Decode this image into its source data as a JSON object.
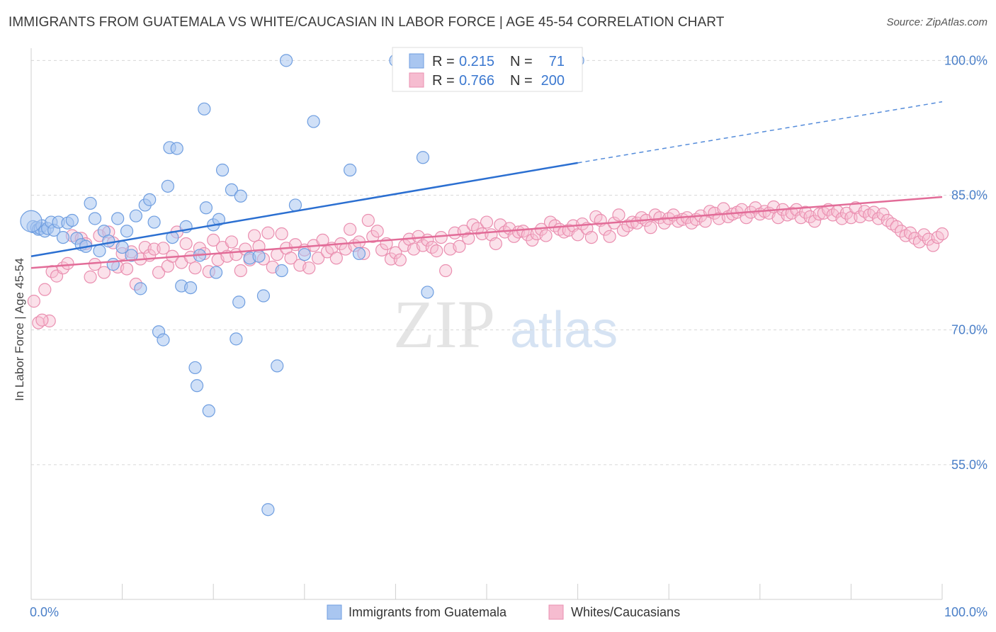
{
  "title": "IMMIGRANTS FROM GUATEMALA VS WHITE/CAUCASIAN IN LABOR FORCE | AGE 45-54 CORRELATION CHART",
  "source": "Source: ZipAtlas.com",
  "watermark": {
    "zip": "ZIP",
    "atlas": "atlas"
  },
  "colors": {
    "blue_fill": "#a9c6f0",
    "blue_stroke": "#6f9ee0",
    "blue_line": "#2b6fd1",
    "pink_fill": "#f6bcd0",
    "pink_stroke": "#ea8fb0",
    "pink_line": "#e26c98",
    "grid": "#d8d8d8",
    "axis_label": "#4a7fc8"
  },
  "legend": {
    "rows": [
      {
        "r_label": "R =",
        "r_value": "0.215",
        "n_label": "N =",
        "n_value": "71"
      },
      {
        "r_label": "R =",
        "r_value": "0.766",
        "n_label": "N =",
        "n_value": "200"
      }
    ]
  },
  "bottom_legend": {
    "series1": "Immigrants from Guatemala",
    "series2": "Whites/Caucasians"
  },
  "chart_data": {
    "type": "scatter",
    "ylabel": "In Labor Force | Age 45-54",
    "x_tick_labels": [
      "0.0%",
      "100.0%"
    ],
    "y_tick_labels": [
      "100.0%",
      "85.0%",
      "70.0%",
      "55.0%"
    ],
    "xlim": [
      0,
      100
    ],
    "ylim": [
      40,
      102
    ],
    "yticks": [
      100,
      85,
      70,
      55
    ],
    "series": [
      {
        "name": "Immigrants from Guatemala",
        "color": "#a9c6f0",
        "trend": {
          "x": [
            0,
            60
          ],
          "y": [
            78.2,
            88.6
          ],
          "dashed_to": [
            100,
            95.4
          ]
        },
        "points": [
          [
            0.2,
            81.5
          ],
          [
            0.6,
            81.4
          ],
          [
            0.8,
            81.2
          ],
          [
            1.0,
            81.3
          ],
          [
            1.2,
            81.6
          ],
          [
            1.5,
            81.0
          ],
          [
            1.8,
            81.3
          ],
          [
            2.2,
            82.0
          ],
          [
            2.5,
            81.1
          ],
          [
            3.0,
            82.0
          ],
          [
            3.5,
            80.3
          ],
          [
            4.0,
            81.9
          ],
          [
            4.5,
            82.2
          ],
          [
            5.0,
            80.2
          ],
          [
            5.5,
            79.5
          ],
          [
            6.0,
            79.3
          ],
          [
            6.5,
            84.1
          ],
          [
            7.0,
            82.4
          ],
          [
            7.5,
            78.8
          ],
          [
            8.0,
            81.0
          ],
          [
            8.5,
            79.9
          ],
          [
            9.0,
            77.3
          ],
          [
            9.5,
            82.4
          ],
          [
            10.0,
            79.2
          ],
          [
            10.5,
            81.0
          ],
          [
            11.0,
            78.3
          ],
          [
            11.5,
            82.7
          ],
          [
            12.0,
            74.6
          ],
          [
            12.5,
            83.9
          ],
          [
            13.0,
            84.5
          ],
          [
            13.5,
            82.0
          ],
          [
            14.0,
            69.8
          ],
          [
            14.5,
            68.9
          ],
          [
            15.0,
            86.0
          ],
          [
            15.2,
            90.3
          ],
          [
            15.5,
            80.3
          ],
          [
            16.0,
            90.2
          ],
          [
            16.5,
            74.9
          ],
          [
            17.0,
            81.5
          ],
          [
            17.5,
            74.7
          ],
          [
            18.0,
            65.8
          ],
          [
            18.2,
            63.8
          ],
          [
            18.5,
            78.3
          ],
          [
            19.0,
            94.6
          ],
          [
            19.2,
            83.6
          ],
          [
            19.5,
            61.0
          ],
          [
            20.0,
            81.7
          ],
          [
            20.3,
            76.4
          ],
          [
            20.6,
            82.3
          ],
          [
            21.0,
            87.8
          ],
          [
            22.0,
            85.6
          ],
          [
            22.5,
            69.0
          ],
          [
            22.8,
            73.1
          ],
          [
            23.0,
            84.9
          ],
          [
            24.0,
            78.0
          ],
          [
            25.0,
            78.2
          ],
          [
            25.5,
            73.8
          ],
          [
            26.0,
            50.0
          ],
          [
            27.0,
            66.0
          ],
          [
            27.5,
            76.6
          ],
          [
            28.0,
            100.0
          ],
          [
            29.0,
            83.9
          ],
          [
            30.0,
            78.4
          ],
          [
            31.0,
            93.2
          ],
          [
            35.0,
            87.8
          ],
          [
            36.0,
            78.5
          ],
          [
            40.0,
            100.0
          ],
          [
            43.0,
            89.2
          ],
          [
            43.5,
            74.2
          ],
          [
            60.0,
            100.0
          ],
          [
            0.0,
            82.1
          ]
        ]
      },
      {
        "name": "Whites/Caucasians",
        "color": "#f6bcd0",
        "trend": {
          "x": [
            0,
            100
          ],
          "y": [
            76.9,
            84.8
          ]
        },
        "points": [
          [
            0.3,
            73.2
          ],
          [
            0.8,
            70.8
          ],
          [
            1.5,
            74.5
          ],
          [
            2.0,
            71.0
          ],
          [
            2.3,
            76.5
          ],
          [
            2.8,
            76.0
          ],
          [
            3.5,
            76.9
          ],
          [
            4.0,
            77.4
          ],
          [
            4.5,
            80.5
          ],
          [
            5.5,
            80.2
          ],
          [
            6.0,
            79.6
          ],
          [
            6.5,
            75.9
          ],
          [
            7.0,
            77.3
          ],
          [
            7.5,
            80.5
          ],
          [
            8.0,
            76.4
          ],
          [
            8.5,
            80.9
          ],
          [
            9.0,
            79.7
          ],
          [
            9.5,
            77.0
          ],
          [
            10.0,
            78.5
          ],
          [
            10.5,
            76.8
          ],
          [
            11.0,
            78.7
          ],
          [
            11.5,
            75.1
          ],
          [
            12.0,
            77.9
          ],
          [
            12.5,
            79.2
          ],
          [
            13.0,
            78.3
          ],
          [
            13.5,
            79.0
          ],
          [
            14.0,
            76.4
          ],
          [
            14.5,
            79.1
          ],
          [
            15.0,
            77.1
          ],
          [
            15.5,
            78.2
          ],
          [
            16.0,
            80.9
          ],
          [
            16.5,
            77.5
          ],
          [
            17.0,
            79.6
          ],
          [
            17.5,
            78.1
          ],
          [
            18.0,
            76.9
          ],
          [
            18.5,
            79.1
          ],
          [
            19.0,
            78.5
          ],
          [
            19.5,
            76.5
          ],
          [
            20.0,
            80.0
          ],
          [
            20.5,
            77.8
          ],
          [
            21.0,
            79.2
          ],
          [
            21.5,
            78.2
          ],
          [
            22.0,
            79.8
          ],
          [
            22.5,
            78.4
          ],
          [
            23.0,
            76.6
          ],
          [
            23.5,
            79.0
          ],
          [
            24.0,
            77.8
          ],
          [
            24.5,
            80.5
          ],
          [
            25.0,
            79.3
          ],
          [
            25.5,
            77.9
          ],
          [
            26.0,
            80.8
          ],
          [
            26.5,
            77.0
          ],
          [
            27.0,
            78.4
          ],
          [
            27.5,
            80.7
          ],
          [
            28.0,
            79.1
          ],
          [
            28.5,
            78.0
          ],
          [
            29.0,
            79.5
          ],
          [
            29.5,
            77.2
          ],
          [
            30.0,
            78.9
          ],
          [
            30.5,
            76.9
          ],
          [
            31.0,
            79.4
          ],
          [
            31.5,
            78.0
          ],
          [
            32.0,
            80.0
          ],
          [
            32.5,
            78.7
          ],
          [
            33.0,
            79.1
          ],
          [
            33.5,
            78.0
          ],
          [
            34.0,
            79.6
          ],
          [
            34.5,
            79.0
          ],
          [
            35.0,
            81.2
          ],
          [
            35.5,
            79.4
          ],
          [
            36.0,
            79.8
          ],
          [
            36.5,
            78.5
          ],
          [
            37.0,
            82.2
          ],
          [
            37.5,
            80.4
          ],
          [
            38.0,
            81.0
          ],
          [
            38.5,
            78.9
          ],
          [
            39.0,
            79.6
          ],
          [
            39.5,
            77.9
          ],
          [
            40.0,
            78.6
          ],
          [
            40.5,
            77.8
          ],
          [
            41.0,
            79.4
          ],
          [
            41.5,
            80.1
          ],
          [
            42.0,
            79.0
          ],
          [
            42.5,
            80.4
          ],
          [
            43.0,
            79.4
          ],
          [
            43.5,
            80.0
          ],
          [
            44.0,
            79.2
          ],
          [
            44.5,
            78.8
          ],
          [
            45.0,
            80.3
          ],
          [
            45.5,
            76.6
          ],
          [
            46.0,
            79.0
          ],
          [
            46.5,
            80.8
          ],
          [
            47.0,
            79.3
          ],
          [
            47.5,
            81.0
          ],
          [
            48.0,
            80.2
          ],
          [
            48.5,
            81.7
          ],
          [
            49.0,
            81.3
          ],
          [
            49.5,
            80.7
          ],
          [
            50.0,
            82.0
          ],
          [
            50.5,
            80.6
          ],
          [
            51.0,
            79.6
          ],
          [
            51.5,
            81.7
          ],
          [
            52.0,
            80.9
          ],
          [
            52.5,
            81.3
          ],
          [
            53.0,
            80.4
          ],
          [
            53.5,
            80.9
          ],
          [
            54.0,
            81.0
          ],
          [
            54.5,
            80.6
          ],
          [
            55.0,
            80.0
          ],
          [
            55.5,
            80.7
          ],
          [
            56.0,
            81.2
          ],
          [
            56.5,
            80.5
          ],
          [
            57.0,
            82.0
          ],
          [
            57.5,
            81.6
          ],
          [
            58.0,
            81.2
          ],
          [
            58.5,
            80.9
          ],
          [
            59.0,
            81.1
          ],
          [
            59.5,
            81.6
          ],
          [
            60.0,
            80.6
          ],
          [
            60.5,
            81.8
          ],
          [
            61.0,
            81.3
          ],
          [
            61.5,
            80.3
          ],
          [
            62.0,
            82.6
          ],
          [
            62.5,
            82.2
          ],
          [
            63.0,
            81.2
          ],
          [
            63.5,
            80.4
          ],
          [
            64.0,
            81.9
          ],
          [
            64.5,
            82.8
          ],
          [
            65.0,
            81.1
          ],
          [
            65.5,
            81.6
          ],
          [
            66.0,
            82.0
          ],
          [
            66.5,
            81.9
          ],
          [
            67.0,
            82.5
          ],
          [
            67.5,
            82.2
          ],
          [
            68.0,
            81.4
          ],
          [
            68.5,
            82.8
          ],
          [
            69.0,
            82.5
          ],
          [
            69.5,
            81.9
          ],
          [
            70.0,
            82.4
          ],
          [
            70.5,
            82.8
          ],
          [
            71.0,
            82.1
          ],
          [
            71.5,
            82.3
          ],
          [
            72.0,
            82.5
          ],
          [
            72.5,
            81.9
          ],
          [
            73.0,
            82.3
          ],
          [
            73.5,
            82.7
          ],
          [
            74.0,
            82.1
          ],
          [
            74.5,
            83.2
          ],
          [
            75.0,
            83.0
          ],
          [
            75.5,
            82.4
          ],
          [
            76.0,
            83.5
          ],
          [
            76.5,
            82.6
          ],
          [
            77.0,
            82.9
          ],
          [
            77.5,
            83.1
          ],
          [
            78.0,
            83.4
          ],
          [
            78.5,
            82.5
          ],
          [
            79.0,
            83.1
          ],
          [
            79.5,
            83.6
          ],
          [
            80.0,
            82.9
          ],
          [
            80.5,
            83.2
          ],
          [
            81.0,
            83.0
          ],
          [
            81.5,
            83.7
          ],
          [
            82.0,
            82.5
          ],
          [
            82.5,
            83.4
          ],
          [
            83.0,
            82.8
          ],
          [
            83.5,
            83.0
          ],
          [
            84.0,
            83.4
          ],
          [
            84.5,
            82.5
          ],
          [
            85.0,
            83.1
          ],
          [
            85.5,
            82.6
          ],
          [
            86.0,
            82.1
          ],
          [
            86.5,
            82.9
          ],
          [
            87.0,
            83.0
          ],
          [
            87.5,
            83.4
          ],
          [
            88.0,
            82.8
          ],
          [
            88.5,
            83.2
          ],
          [
            89.0,
            82.4
          ],
          [
            89.5,
            83.0
          ],
          [
            90.0,
            82.5
          ],
          [
            90.5,
            83.6
          ],
          [
            91.0,
            82.6
          ],
          [
            91.5,
            83.2
          ],
          [
            92.0,
            82.8
          ],
          [
            92.5,
            83.1
          ],
          [
            93.0,
            82.4
          ],
          [
            93.5,
            82.9
          ],
          [
            94.0,
            82.2
          ],
          [
            94.5,
            81.8
          ],
          [
            95.0,
            81.5
          ],
          [
            95.5,
            81.0
          ],
          [
            96.0,
            80.5
          ],
          [
            96.5,
            80.8
          ],
          [
            97.0,
            80.2
          ],
          [
            97.5,
            79.8
          ],
          [
            98.0,
            80.6
          ],
          [
            98.5,
            80.1
          ],
          [
            99.0,
            79.4
          ],
          [
            99.5,
            80.3
          ],
          [
            100.0,
            80.7
          ],
          [
            1.2,
            71.1
          ]
        ]
      }
    ]
  }
}
